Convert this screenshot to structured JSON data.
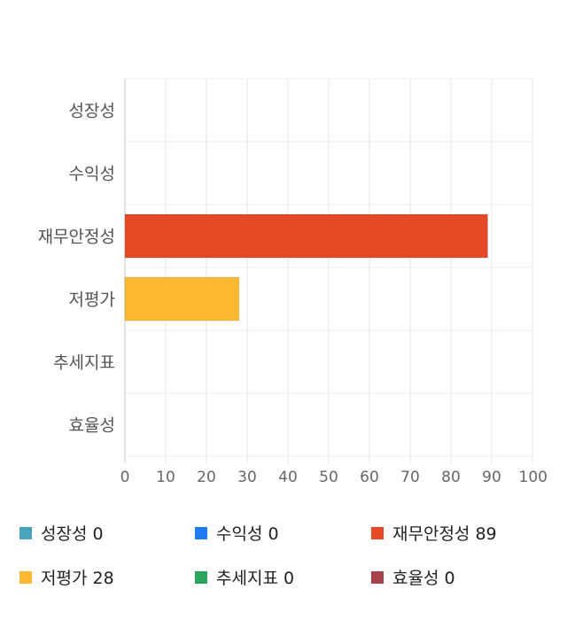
{
  "chart_data": {
    "type": "bar",
    "orientation": "horizontal",
    "categories": [
      "성장성",
      "수익성",
      "재무안정성",
      "저평가",
      "추세지표",
      "효율성"
    ],
    "values": [
      0,
      0,
      89,
      28,
      0,
      0
    ],
    "colors": [
      "#4aa3b8",
      "#1e7bf0",
      "#e34a25",
      "#fdb934",
      "#2aa55a",
      "#a8434e"
    ],
    "xlim": [
      0,
      100
    ],
    "x_ticks": [
      "0",
      "10",
      "20",
      "30",
      "40",
      "50",
      "60",
      "70",
      "80",
      "90",
      "100"
    ],
    "grid": true,
    "legend_position": "bottom"
  },
  "legend": [
    {
      "label": "성장성 0",
      "color": "#4aa3b8"
    },
    {
      "label": "수익성 0",
      "color": "#1e7bf0"
    },
    {
      "label": "재무안정성 89",
      "color": "#e34a25"
    },
    {
      "label": "저평가 28",
      "color": "#fdb934"
    },
    {
      "label": "추세지표 0",
      "color": "#2aa55a"
    },
    {
      "label": "효율성 0",
      "color": "#a8434e"
    }
  ]
}
